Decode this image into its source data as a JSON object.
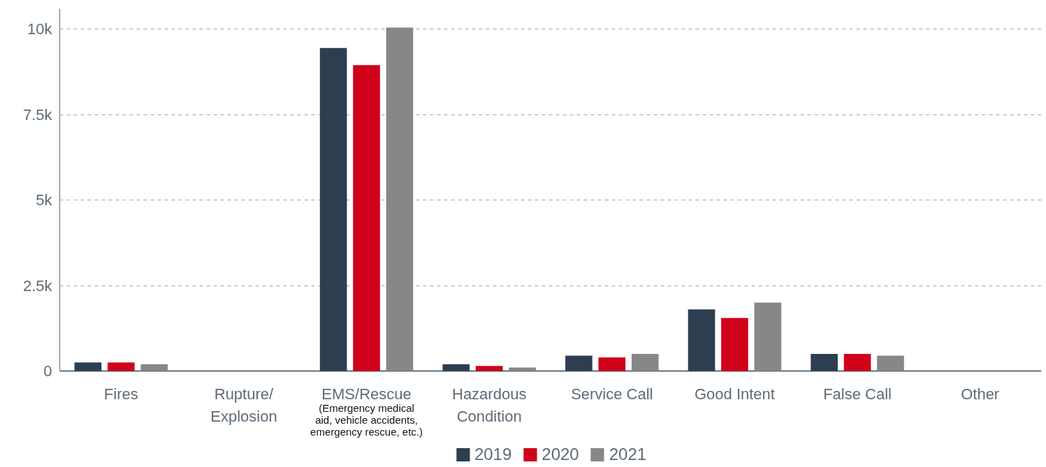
{
  "chart_data": {
    "type": "bar",
    "categories": [
      "Fires",
      "Rupture/\nExplosion",
      "EMS/Rescue",
      "Hazardous\nCondition",
      "Service Call",
      "Good Intent",
      "False Call",
      "Other"
    ],
    "series": [
      {
        "name": "2019",
        "color": "#2d3e50",
        "values": [
          250,
          0,
          9450,
          200,
          450,
          1800,
          500,
          0
        ]
      },
      {
        "name": "2020",
        "color": "#d0021b",
        "values": [
          250,
          0,
          8950,
          150,
          400,
          1550,
          500,
          0
        ]
      },
      {
        "name": "2021",
        "color": "#878787",
        "values": [
          200,
          0,
          10050,
          100,
          500,
          2000,
          450,
          0
        ]
      }
    ],
    "annotations": [
      "(Emergency medical\naid, vehicle accidents,\nemergency rescue, etc.)"
    ],
    "ylim": [
      0,
      10600
    ],
    "yticks": [
      0,
      {
        "value": 2500,
        "label": "2.5k"
      },
      {
        "value": 5000,
        "label": "5k"
      },
      {
        "value": 7500,
        "label": "7.5k"
      },
      {
        "value": 10000,
        "label": "10k"
      }
    ],
    "grid": "y",
    "legend": "bottom"
  }
}
